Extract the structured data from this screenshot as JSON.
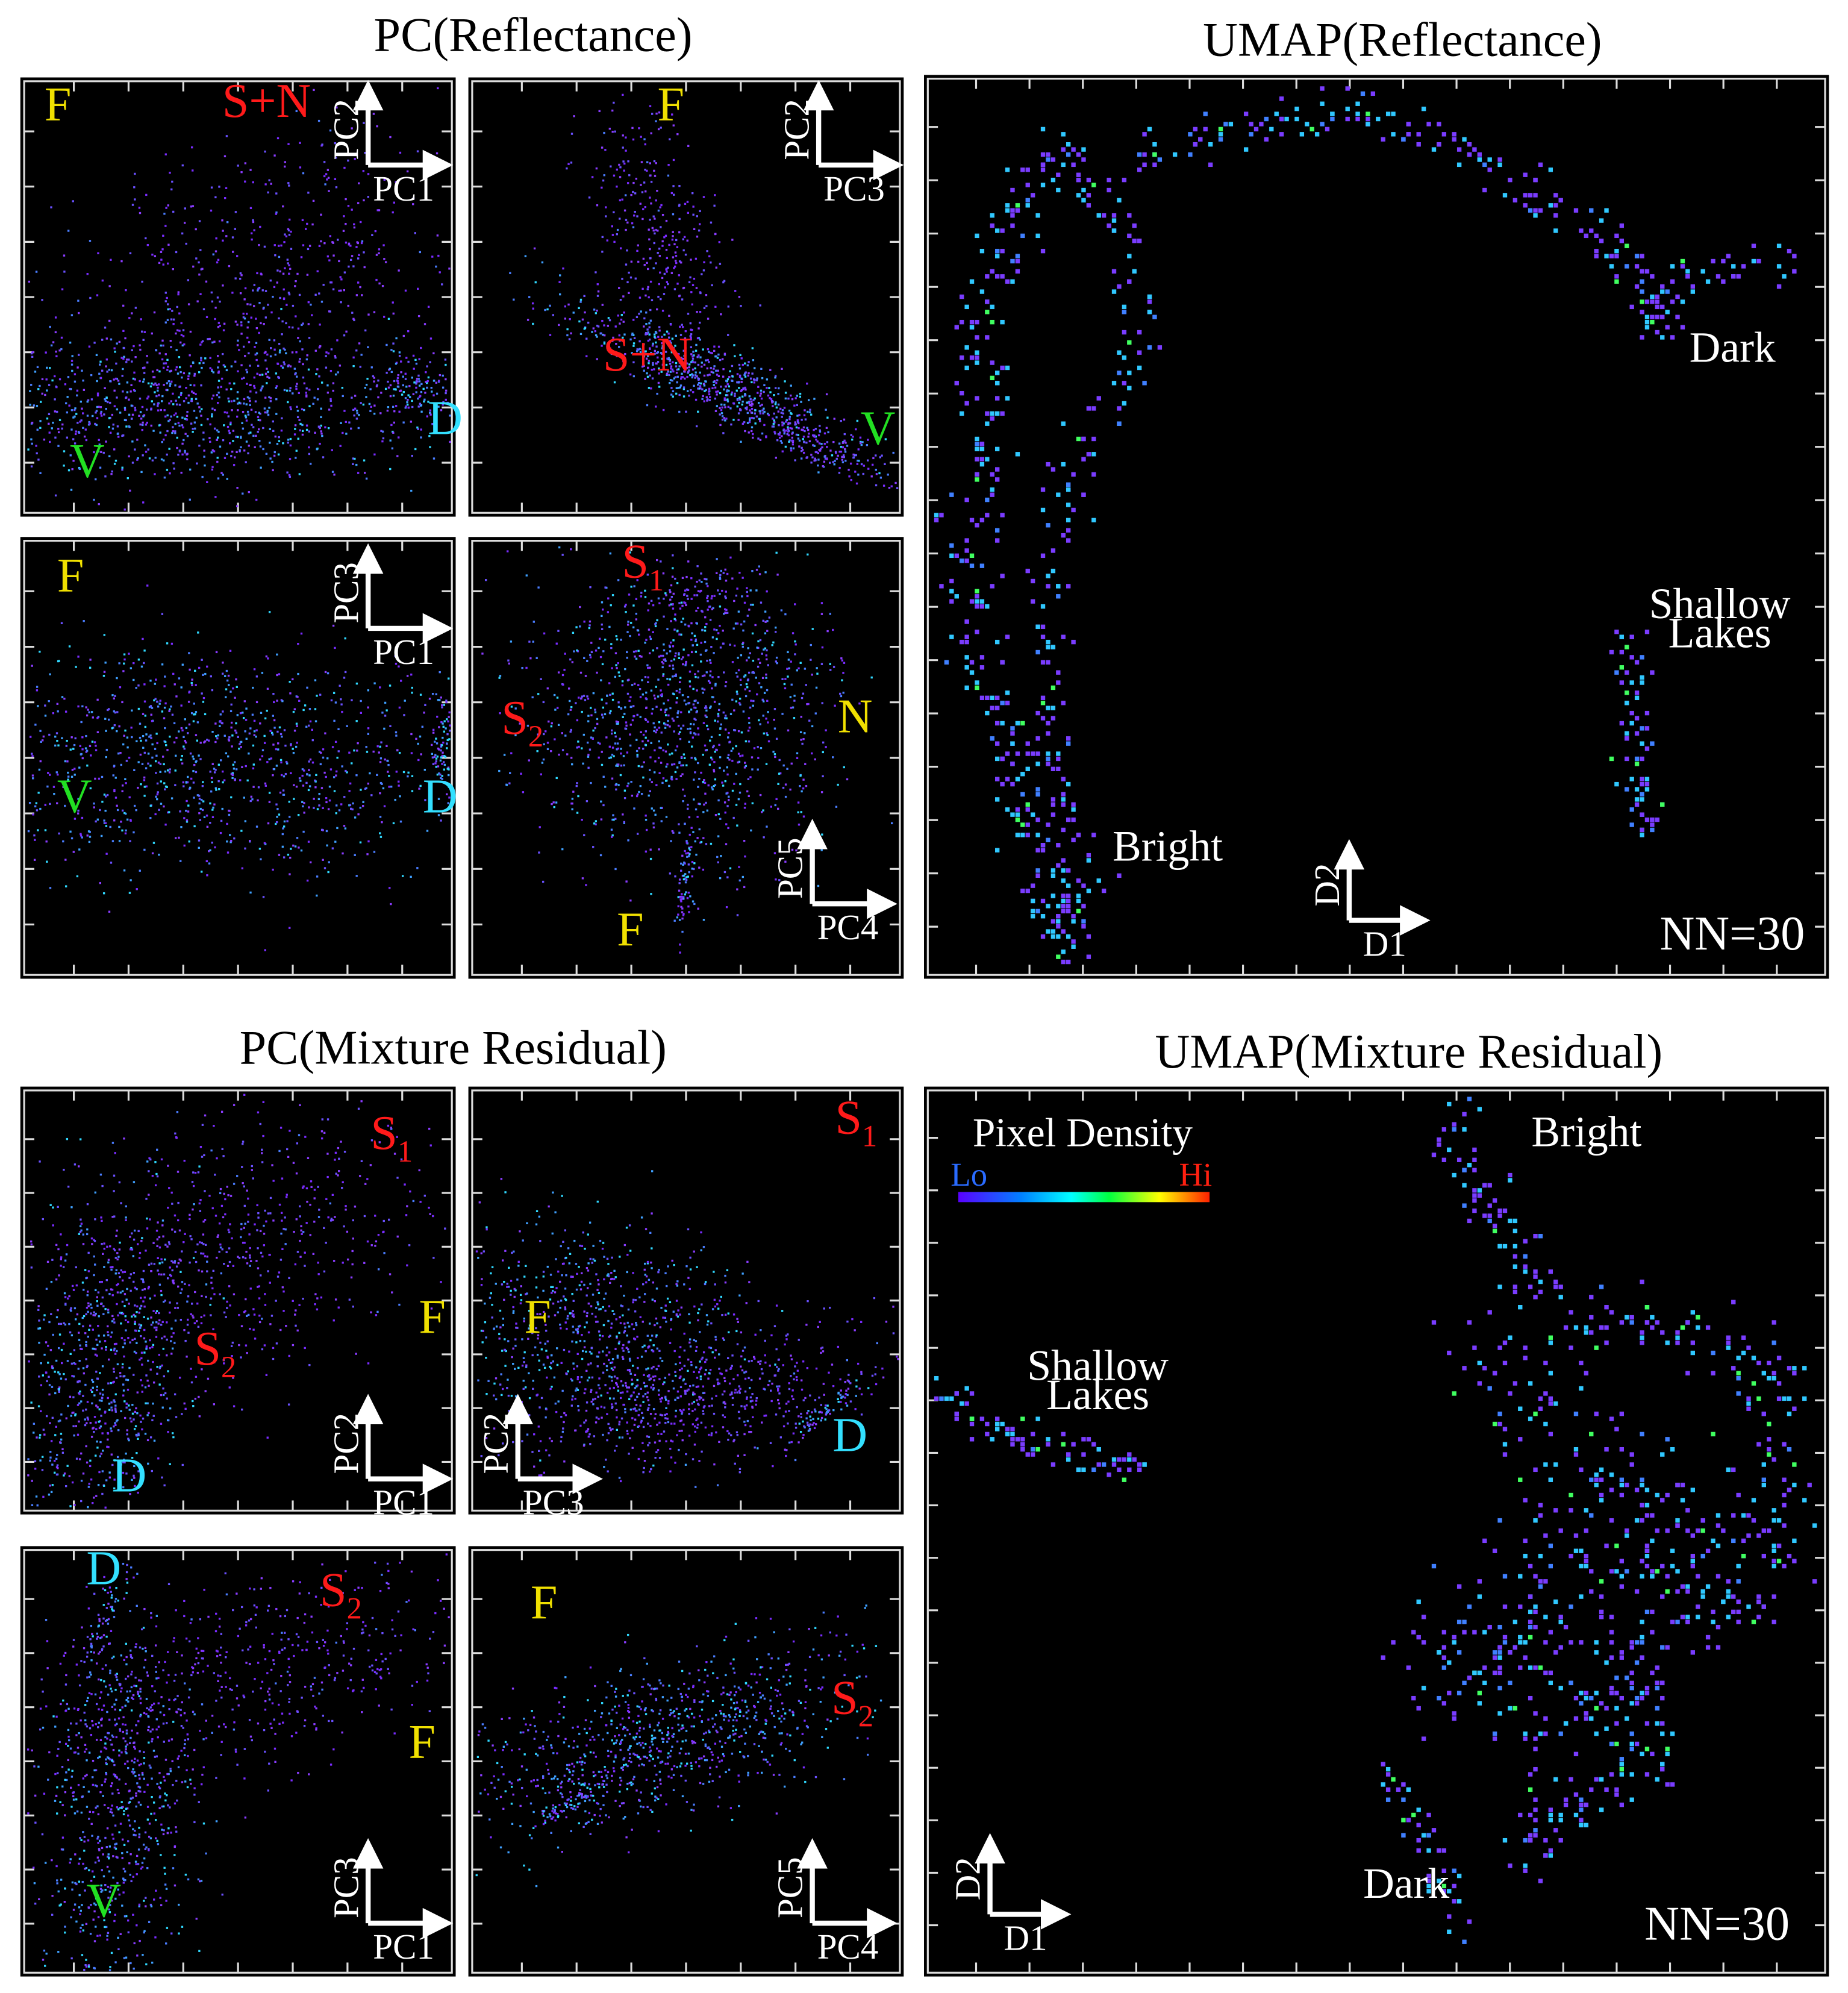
{
  "sections": [
    {
      "title": "PC(Reflectance)",
      "panels": [
        {
          "axes": {
            "y": "PC2",
            "x": "PC1"
          },
          "labels": [
            {
              "text": "F"
            },
            {
              "text": "S+N"
            },
            {
              "text": "D"
            },
            {
              "text": "V"
            }
          ]
        },
        {
          "axes": {
            "y": "PC2",
            "x": "PC3"
          },
          "labels": [
            {
              "text": "F"
            },
            {
              "text": "S+N"
            },
            {
              "text": "V"
            }
          ]
        },
        {
          "axes": {
            "y": "PC3",
            "x": "PC1"
          },
          "labels": [
            {
              "text": "F"
            },
            {
              "text": "V"
            },
            {
              "text": "D"
            }
          ]
        },
        {
          "axes": {
            "y": "PC5",
            "x": "PC4"
          },
          "labels": [
            {
              "text": "S",
              "sub": "1"
            },
            {
              "text": "S",
              "sub": "2"
            },
            {
              "text": "N"
            },
            {
              "text": "F"
            }
          ]
        }
      ]
    },
    {
      "title": "UMAP(Reflectance)",
      "panel": {
        "axes": {
          "y": "D2",
          "x": "D1"
        },
        "labels": [
          {
            "lines": [
              "Dark"
            ]
          },
          {
            "lines": [
              "Shallow",
              "Lakes"
            ]
          },
          {
            "lines": [
              "Bright"
            ]
          }
        ],
        "note": "NN=30"
      }
    },
    {
      "title": "PC(Mixture Residual)",
      "panels": [
        {
          "axes": {
            "y": "PC2",
            "x": "PC1"
          },
          "labels": [
            {
              "text": "S",
              "sub": "1"
            },
            {
              "text": "S",
              "sub": "2"
            },
            {
              "text": "F"
            },
            {
              "text": "D"
            }
          ]
        },
        {
          "axes": {
            "y": "PC2",
            "x": "PC3"
          },
          "labels": [
            {
              "text": "S",
              "sub": "1"
            },
            {
              "text": "F"
            },
            {
              "text": "D"
            }
          ]
        },
        {
          "axes": {
            "y": "PC3",
            "x": "PC1"
          },
          "labels": [
            {
              "text": "D"
            },
            {
              "text": "S",
              "sub": "2"
            },
            {
              "text": "F"
            },
            {
              "text": "V"
            }
          ]
        },
        {
          "axes": {
            "y": "PC5",
            "x": "PC4"
          },
          "labels": [
            {
              "text": "F"
            },
            {
              "text": "S",
              "sub": "2"
            }
          ]
        }
      ]
    },
    {
      "title": "UMAP(Mixture Residual)",
      "panel": {
        "axes": {
          "y": "D2",
          "x": "D1"
        },
        "labels": [
          {
            "lines": [
              "Bright"
            ]
          },
          {
            "lines": [
              "Shallow",
              "Lakes"
            ]
          },
          {
            "lines": [
              "Dark"
            ]
          }
        ],
        "note": "NN=30"
      },
      "legend": {
        "title": "Pixel Density",
        "low": "Lo",
        "high": "Hi"
      }
    }
  ]
}
